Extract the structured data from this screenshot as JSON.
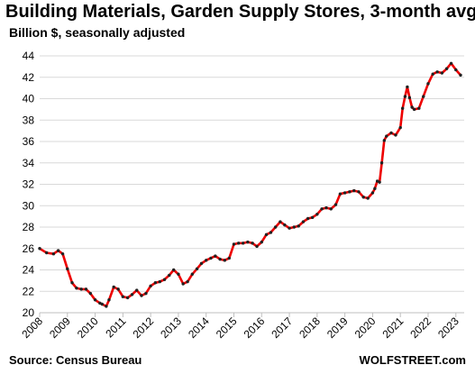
{
  "header": {
    "title": "Building Materials, Garden Supply Stores, 3-month avg.",
    "subtitle": "Billion $, seasonally adjusted"
  },
  "footer": {
    "source": "Source: Census Bureau",
    "brand": "WOLFSTREET.com"
  },
  "colors": {
    "line": "#ee0000",
    "marker": "#222222",
    "grid": "#d9d9d9",
    "axis": "#bfbfbf"
  },
  "chart_data": {
    "type": "line",
    "title": "Building Materials, Garden Supply Stores, 3-month avg.",
    "subtitle": "Billion $, seasonally adjusted",
    "xlabel": "",
    "ylabel": "",
    "xlim": [
      2008,
      2023.3
    ],
    "ylim": [
      20,
      44
    ],
    "yticks": [
      20,
      22,
      24,
      26,
      28,
      30,
      32,
      34,
      36,
      38,
      40,
      42,
      44
    ],
    "xticks": [
      "2008",
      "2009",
      "2010",
      "2011",
      "2012",
      "2013",
      "2014",
      "2015",
      "2016",
      "2017",
      "2018",
      "2019",
      "2020",
      "2021",
      "2022",
      "2023"
    ],
    "grid": true,
    "legend": "none",
    "markers": true,
    "series": [
      {
        "x": [
          2008.0,
          2008.25,
          2008.5,
          2008.67,
          2008.83,
          2009.0,
          2009.17,
          2009.33,
          2009.5,
          2009.67,
          2009.83,
          2010.0,
          2010.17,
          2010.25,
          2010.4,
          2010.5,
          2010.67,
          2010.83,
          2011.0,
          2011.17,
          2011.33,
          2011.5,
          2011.67,
          2011.83,
          2012.0,
          2012.17,
          2012.33,
          2012.5,
          2012.67,
          2012.83,
          2013.0,
          2013.17,
          2013.33,
          2013.5,
          2013.67,
          2013.83,
          2014.0,
          2014.17,
          2014.33,
          2014.5,
          2014.67,
          2014.83,
          2015.0,
          2015.17,
          2015.33,
          2015.5,
          2015.67,
          2015.83,
          2016.0,
          2016.17,
          2016.33,
          2016.5,
          2016.67,
          2016.83,
          2017.0,
          2017.17,
          2017.33,
          2017.5,
          2017.67,
          2017.83,
          2018.0,
          2018.17,
          2018.33,
          2018.5,
          2018.67,
          2018.83,
          2019.0,
          2019.17,
          2019.33,
          2019.5,
          2019.67,
          2019.83,
          2020.0,
          2020.08,
          2020.17,
          2020.25,
          2020.33,
          2020.42,
          2020.5,
          2020.67,
          2020.83,
          2021.0,
          2021.08,
          2021.17,
          2021.25,
          2021.33,
          2021.42,
          2021.5,
          2021.67,
          2021.83,
          2022.0,
          2022.17,
          2022.33,
          2022.5,
          2022.67,
          2022.83,
          2023.0,
          2023.17
        ],
        "values": [
          26.0,
          25.6,
          25.5,
          25.8,
          25.5,
          24.1,
          22.8,
          22.3,
          22.2,
          22.2,
          21.8,
          21.2,
          20.9,
          20.8,
          20.6,
          21.2,
          22.4,
          22.2,
          21.5,
          21.4,
          21.7,
          22.1,
          21.6,
          21.8,
          22.5,
          22.8,
          22.9,
          23.1,
          23.5,
          24.0,
          23.6,
          22.7,
          22.9,
          23.6,
          24.1,
          24.6,
          24.9,
          25.1,
          25.3,
          25.0,
          24.9,
          25.1,
          26.4,
          26.5,
          26.5,
          26.6,
          26.5,
          26.2,
          26.6,
          27.3,
          27.5,
          28.0,
          28.5,
          28.2,
          27.9,
          28.0,
          28.1,
          28.5,
          28.8,
          28.9,
          29.2,
          29.7,
          29.8,
          29.7,
          30.1,
          31.1,
          31.2,
          31.3,
          31.4,
          31.3,
          30.8,
          30.7,
          31.2,
          31.6,
          32.3,
          32.2,
          34.0,
          36.1,
          36.5,
          36.8,
          36.6,
          37.3,
          39.1,
          40.2,
          41.1,
          40.1,
          39.2,
          39.0,
          39.1,
          40.2,
          41.4,
          42.3,
          42.5,
          42.4,
          42.8,
          43.3,
          42.7,
          42.2
        ]
      }
    ]
  }
}
